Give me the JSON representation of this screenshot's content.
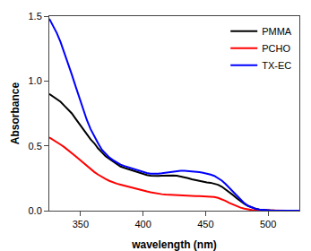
{
  "chart_data": {
    "type": "line",
    "xlabel": "wavelength (nm)",
    "ylabel": "Absorbance",
    "xlim": [
      325,
      525
    ],
    "ylim": [
      0,
      1.5
    ],
    "xticks": [
      350,
      400,
      450,
      500
    ],
    "yticks": [
      {
        "value": 0,
        "label": "0.0"
      },
      0.5,
      {
        "value": 1,
        "label": "1.0"
      },
      1.5
    ],
    "grid": false,
    "legend": "upper right",
    "x": [
      325,
      328,
      331,
      334,
      337,
      340,
      343,
      346,
      349,
      352,
      355,
      358,
      361,
      364,
      367,
      370,
      373,
      376,
      379,
      382,
      385,
      388,
      391,
      394,
      397,
      400,
      403,
      406,
      409,
      412,
      415,
      418,
      421,
      424,
      427,
      430,
      433,
      436,
      439,
      442,
      445,
      448,
      451,
      454,
      457,
      460,
      463,
      466,
      469,
      472,
      475,
      478,
      481,
      484,
      487,
      490,
      493,
      496,
      499,
      502,
      505,
      510,
      515,
      520,
      525
    ],
    "series": [
      {
        "name": "PMMA",
        "color": "#000000",
        "values": [
          0.9,
          0.88,
          0.86,
          0.84,
          0.81,
          0.78,
          0.75,
          0.71,
          0.67,
          0.63,
          0.59,
          0.55,
          0.52,
          0.48,
          0.45,
          0.42,
          0.4,
          0.38,
          0.36,
          0.34,
          0.33,
          0.32,
          0.31,
          0.3,
          0.29,
          0.28,
          0.275,
          0.27,
          0.268,
          0.268,
          0.27,
          0.272,
          0.273,
          0.272,
          0.27,
          0.265,
          0.258,
          0.25,
          0.242,
          0.235,
          0.228,
          0.222,
          0.218,
          0.215,
          0.21,
          0.2,
          0.185,
          0.165,
          0.145,
          0.12,
          0.095,
          0.072,
          0.052,
          0.036,
          0.024,
          0.015,
          0.009,
          0.005,
          0.003,
          0.002,
          0.001,
          0.0005,
          0.0002,
          0.0001,
          0.0
        ]
      },
      {
        "name": "PCHO",
        "color": "#ff0000",
        "values": [
          0.565,
          0.548,
          0.53,
          0.51,
          0.49,
          0.468,
          0.445,
          0.42,
          0.395,
          0.37,
          0.345,
          0.32,
          0.298,
          0.278,
          0.26,
          0.244,
          0.23,
          0.218,
          0.208,
          0.2,
          0.192,
          0.185,
          0.178,
          0.17,
          0.162,
          0.155,
          0.148,
          0.142,
          0.136,
          0.131,
          0.127,
          0.124,
          0.122,
          0.12,
          0.118,
          0.116,
          0.114,
          0.113,
          0.112,
          0.112,
          0.112,
          0.111,
          0.11,
          0.108,
          0.105,
          0.098,
          0.088,
          0.075,
          0.06,
          0.046,
          0.034,
          0.023,
          0.015,
          0.009,
          0.005,
          0.003,
          0.002,
          0.001,
          0.0005,
          0.0002,
          0.0001,
          0.0,
          0.0,
          0.0,
          0.0
        ]
      },
      {
        "name": "TX-EC",
        "color": "#0000ff",
        "values": [
          1.48,
          1.43,
          1.37,
          1.3,
          1.22,
          1.14,
          1.05,
          0.96,
          0.87,
          0.78,
          0.7,
          0.63,
          0.57,
          0.52,
          0.47,
          0.44,
          0.41,
          0.39,
          0.37,
          0.355,
          0.345,
          0.335,
          0.325,
          0.315,
          0.305,
          0.296,
          0.29,
          0.286,
          0.284,
          0.285,
          0.288,
          0.292,
          0.297,
          0.302,
          0.306,
          0.308,
          0.308,
          0.306,
          0.303,
          0.3,
          0.297,
          0.292,
          0.286,
          0.278,
          0.268,
          0.252,
          0.232,
          0.205,
          0.175,
          0.145,
          0.112,
          0.082,
          0.058,
          0.038,
          0.024,
          0.014,
          0.008,
          0.004,
          0.002,
          0.001,
          0.0005,
          0.0002,
          0.0,
          0.0,
          0.0
        ]
      }
    ]
  }
}
